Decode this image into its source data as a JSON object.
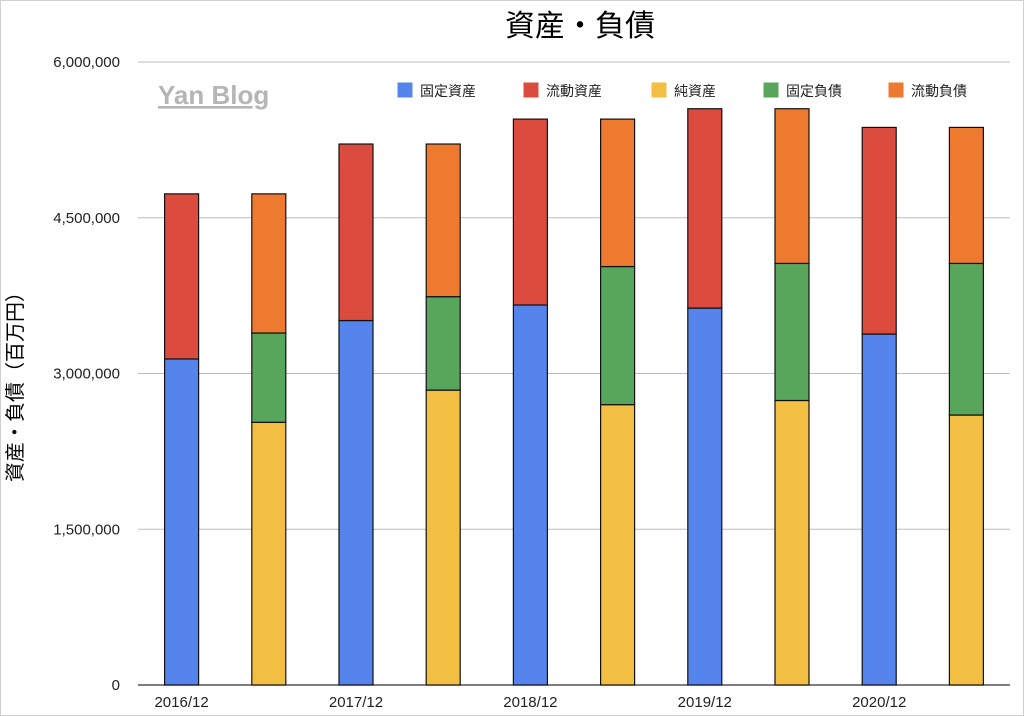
{
  "watermark": "Yan Blog",
  "chart_data": {
    "type": "bar",
    "stacked": true,
    "title": "資産・負債",
    "ylabel": "資産・負債（百万円）",
    "xlabel": "",
    "ylim": [
      0,
      6000000
    ],
    "y_ticks": [
      0,
      1500000,
      3000000,
      4500000,
      6000000
    ],
    "y_tick_labels": [
      "0",
      "1,500,000",
      "3,000,000",
      "4,500,000",
      "6,000,000"
    ],
    "x_tick_labels": [
      "2016/12",
      "2017/12",
      "2018/12",
      "2019/12",
      "2020/12"
    ],
    "grid": true,
    "legend_position": "top-right",
    "series": [
      {
        "name": "固定資産",
        "color": "#5585ec"
      },
      {
        "name": "流動資産",
        "color": "#dc4c3e"
      },
      {
        "name": "純資産",
        "color": "#f2bf42"
      },
      {
        "name": "固定負債",
        "color": "#58a55c"
      },
      {
        "name": "流動負債",
        "color": "#ee7a2f"
      }
    ],
    "bars": [
      {
        "period": "2016/12",
        "side": "資産",
        "segments": [
          {
            "series": "固定資産",
            "value": 3140000
          },
          {
            "series": "流動資産",
            "value": 1590000
          }
        ]
      },
      {
        "period": "2016/12",
        "side": "負債・純資産",
        "segments": [
          {
            "series": "純資産",
            "value": 2530000
          },
          {
            "series": "固定負債",
            "value": 860000
          },
          {
            "series": "流動負債",
            "value": 1340000
          }
        ]
      },
      {
        "period": "2017/12",
        "side": "資産",
        "segments": [
          {
            "series": "固定資産",
            "value": 3510000
          },
          {
            "series": "流動資産",
            "value": 1700000
          }
        ]
      },
      {
        "period": "2017/12",
        "side": "負債・純資産",
        "segments": [
          {
            "series": "純資産",
            "value": 2840000
          },
          {
            "series": "固定負債",
            "value": 900000
          },
          {
            "series": "流動負債",
            "value": 1470000
          }
        ]
      },
      {
        "period": "2018/12",
        "side": "資産",
        "segments": [
          {
            "series": "固定資産",
            "value": 3660000
          },
          {
            "series": "流動資産",
            "value": 1790000
          }
        ]
      },
      {
        "period": "2018/12",
        "side": "負債・純資産",
        "segments": [
          {
            "series": "純資産",
            "value": 2700000
          },
          {
            "series": "固定負債",
            "value": 1330000
          },
          {
            "series": "流動負債",
            "value": 1420000
          }
        ]
      },
      {
        "period": "2019/12",
        "side": "資産",
        "segments": [
          {
            "series": "固定資産",
            "value": 3630000
          },
          {
            "series": "流動資産",
            "value": 1920000
          }
        ]
      },
      {
        "period": "2019/12",
        "side": "負債・純資産",
        "segments": [
          {
            "series": "純資産",
            "value": 2740000
          },
          {
            "series": "固定負債",
            "value": 1320000
          },
          {
            "series": "流動負債",
            "value": 1490000
          }
        ]
      },
      {
        "period": "2020/12",
        "side": "資産",
        "segments": [
          {
            "series": "固定資産",
            "value": 3380000
          },
          {
            "series": "流動資産",
            "value": 1990000
          }
        ]
      },
      {
        "period": "2020/12",
        "side": "負債・純資産",
        "segments": [
          {
            "series": "純資産",
            "value": 2600000
          },
          {
            "series": "固定負債",
            "value": 1460000
          },
          {
            "series": "流動負債",
            "value": 1310000
          }
        ]
      }
    ]
  }
}
